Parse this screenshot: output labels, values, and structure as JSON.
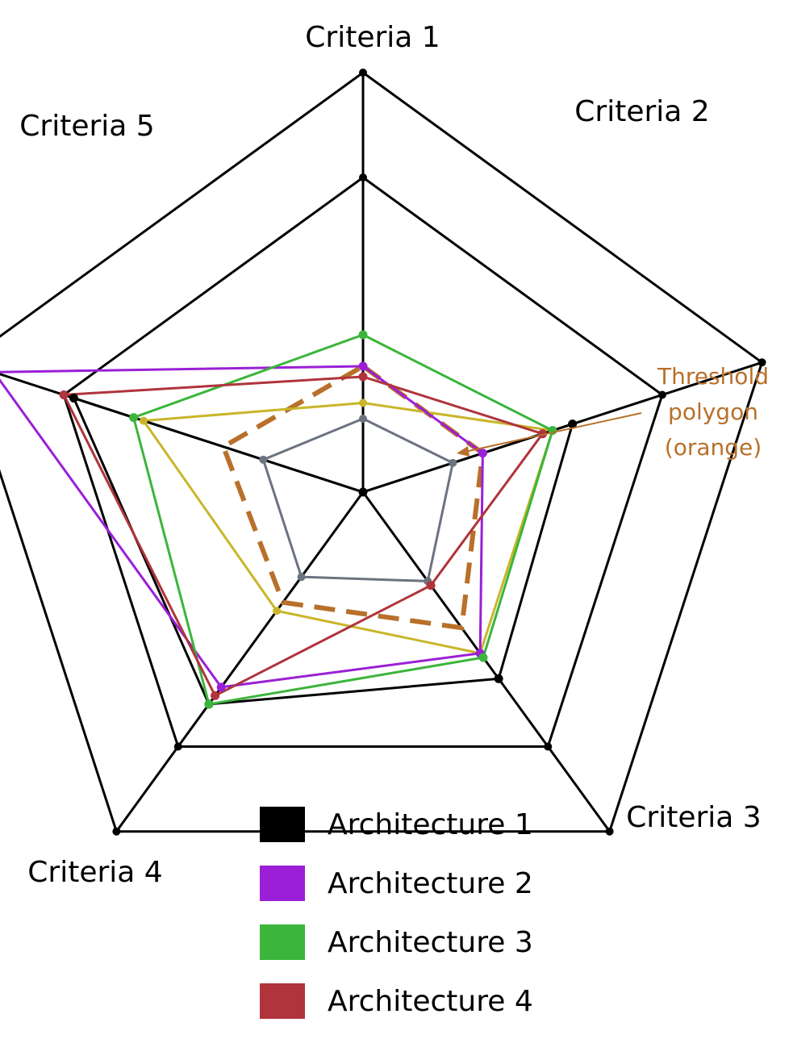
{
  "chart_data": {
    "type": "radar",
    "title": "",
    "axes": [
      "Criteria 1",
      "Criteria 2",
      "Criteria 3",
      "Criteria 4",
      "Criteria 5"
    ],
    "scale": {
      "min": 0,
      "max": 4
    },
    "grid": true,
    "grid_levels": [
      4,
      3
    ],
    "colors": {
      "web": "#000000",
      "Architecture 1": "#000000",
      "Architecture 2": "#9b1fd6",
      "Architecture 3": "#3bb53b",
      "Architecture 4": "#b0343c",
      "threshold": "#b8702a",
      "yellow": "#c9b52a",
      "gray": "#6b7380"
    },
    "series": [
      {
        "name": "Architecture 1",
        "values": [
          0,
          2.1,
          2.2,
          2.5,
          2.9
        ]
      },
      {
        "name": "Architecture 2",
        "values": [
          1.2,
          1.2,
          1.9,
          2.3,
          3.7
        ]
      },
      {
        "name": "Architecture 3",
        "values": [
          1.5,
          1.9,
          1.95,
          2.5,
          2.3
        ]
      },
      {
        "name": "Architecture 4",
        "values": [
          1.1,
          1.8,
          1.1,
          2.4,
          3.0
        ]
      }
    ],
    "extra_polygons": [
      {
        "role": "threshold",
        "style": "dashed",
        "values": [
          1.2,
          1.2,
          1.6,
          1.3,
          1.4
        ]
      },
      {
        "role": "yellow",
        "values": [
          0.85,
          1.9,
          1.9,
          1.4,
          2.2
        ]
      },
      {
        "role": "gray",
        "values": [
          0.7,
          0.9,
          1.05,
          1.0,
          1.0
        ]
      }
    ],
    "annotation": {
      "lines": [
        "Threshold",
        "polygon",
        "(orange)"
      ]
    },
    "legend": {
      "position": "bottom"
    }
  }
}
